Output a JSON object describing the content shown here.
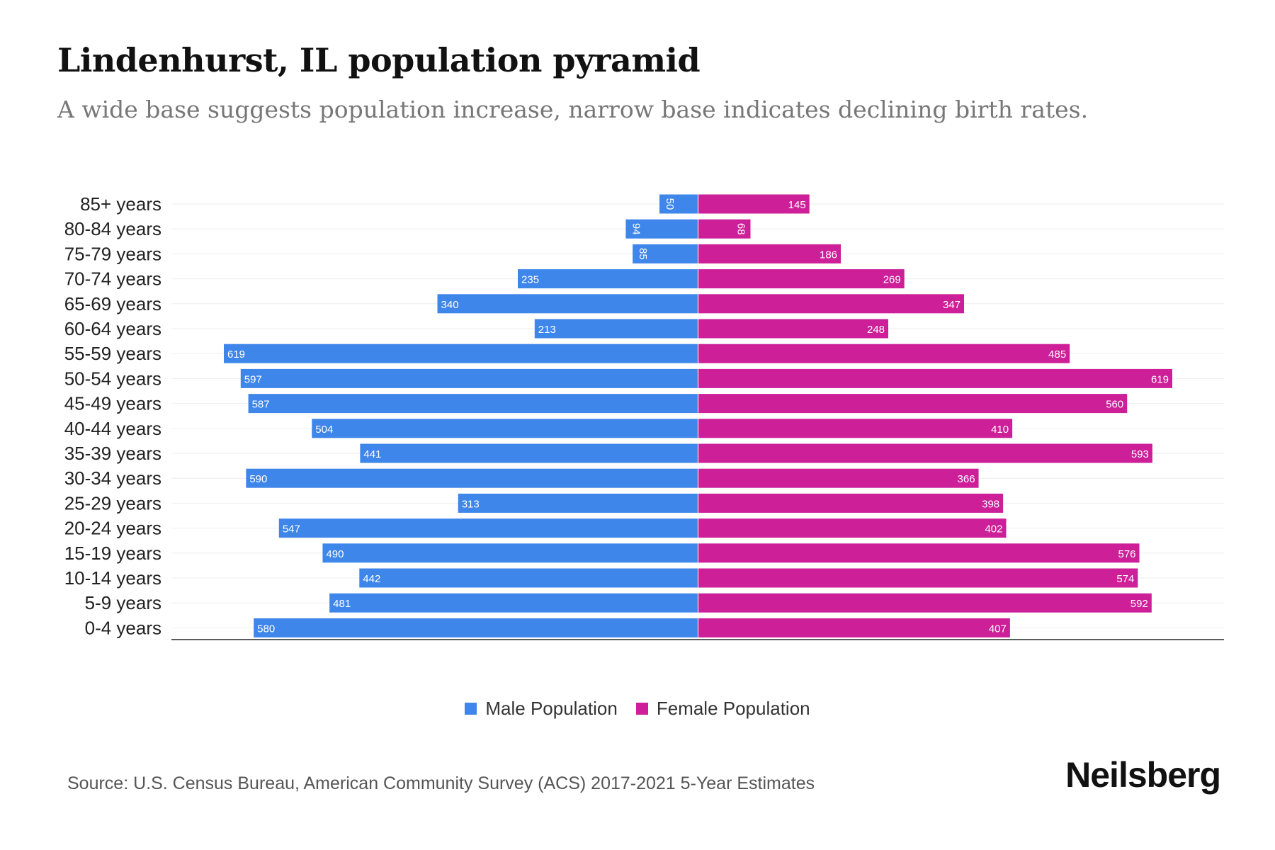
{
  "title": "Lindenhurst, IL population pyramid",
  "subtitle": "A wide base suggests population increase, narrow base indicates declining birth rates.",
  "source": "Source: U.S. Census Bureau, American Community Survey (ACS) 2017-2021 5-Year Estimates",
  "brand": "Neilsberg",
  "colors": {
    "male": "#3f86ea",
    "female": "#cc1f98"
  },
  "chart_data": {
    "type": "bar",
    "orientation": "horizontal-pyramid",
    "title": "Lindenhurst, IL population pyramid",
    "categories": [
      "85+ years",
      "80-84 years",
      "75-79 years",
      "70-74 years",
      "65-69 years",
      "60-64 years",
      "55-59 years",
      "50-54 years",
      "45-49 years",
      "40-44 years",
      "35-39 years",
      "30-34 years",
      "25-29 years",
      "20-24 years",
      "15-19 years",
      "10-14 years",
      "5-9 years",
      "0-4 years"
    ],
    "series": [
      {
        "name": "Male Population",
        "values": [
          50,
          94,
          85,
          235,
          340,
          213,
          619,
          597,
          587,
          504,
          441,
          590,
          313,
          547,
          490,
          442,
          481,
          580
        ]
      },
      {
        "name": "Female Population",
        "values": [
          145,
          68,
          186,
          269,
          347,
          248,
          485,
          619,
          560,
          410,
          593,
          366,
          398,
          402,
          576,
          574,
          592,
          407
        ]
      }
    ],
    "xlim": [
      -690,
      690
    ],
    "legend": "bottom-center"
  }
}
